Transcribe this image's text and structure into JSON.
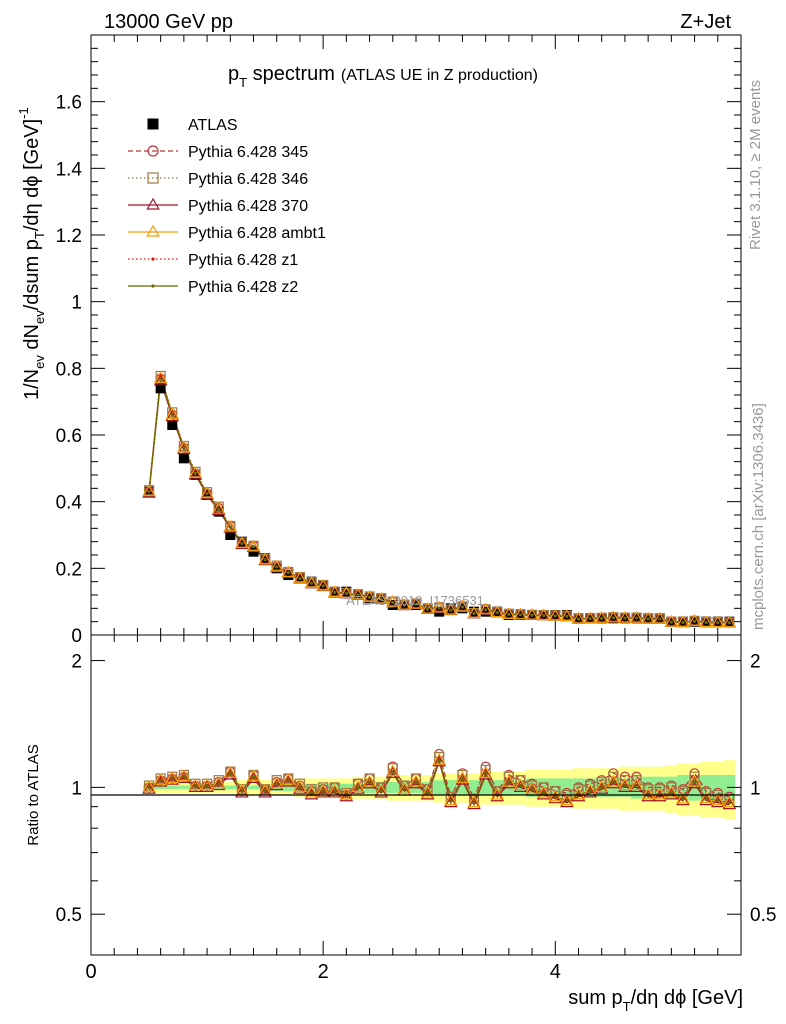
{
  "header": {
    "energy_label": "13000 GeV pp",
    "process_label": "Z+Jet"
  },
  "side_labels": {
    "rivet": "Rivet 3.1.10, ≥ 2M events",
    "mcplots": "mcplots.cern.ch [arXiv:1306.3436]"
  },
  "watermark": "ATLAS_2019_I1736531",
  "chart_data": [
    {
      "type": "line",
      "title": "p_T spectrum (ATLAS UE in Z production)",
      "title_main": "p",
      "title_sub": "T",
      "title_rest": " spectrum",
      "title_paren": "(ATLAS UE in Z production)",
      "ylabel": "1/N_ev dN_ev/dsum p_T/dη dφ [GeV]^-1",
      "xlabel": "sum p_T/dη dφ [GeV]",
      "xlim": [
        0,
        5.6
      ],
      "ylim": [
        0,
        1.8
      ],
      "xticks": [
        "0",
        "2",
        "4"
      ],
      "yticks": [
        "0",
        "0.2",
        "0.4",
        "0.6",
        "0.8",
        "1",
        "1.2",
        "1.4",
        "1.6"
      ],
      "legend_position": "top-left",
      "grid": false,
      "x": [
        0.5,
        0.6,
        0.7,
        0.8,
        0.9,
        1.0,
        1.1,
        1.2,
        1.3,
        1.4,
        1.5,
        1.6,
        1.7,
        1.8,
        1.9,
        2.0,
        2.1,
        2.2,
        2.3,
        2.4,
        2.5,
        2.6,
        2.7,
        2.8,
        2.9,
        3.0,
        3.1,
        3.2,
        3.3,
        3.4,
        3.5,
        3.6,
        3.7,
        3.8,
        3.9,
        4.0,
        4.1,
        4.2,
        4.3,
        4.4,
        4.5,
        4.6,
        4.7,
        4.8,
        4.9,
        5.0,
        5.1,
        5.2,
        5.3,
        5.4,
        5.5
      ],
      "data": [
        0.43,
        0.74,
        0.63,
        0.53,
        0.48,
        0.42,
        0.37,
        0.3,
        0.28,
        0.25,
        0.23,
        0.2,
        0.18,
        0.17,
        0.16,
        0.15,
        0.13,
        0.13,
        0.12,
        0.11,
        0.11,
        0.09,
        0.09,
        0.09,
        0.08,
        0.07,
        0.08,
        0.08,
        0.07,
        0.07,
        0.07,
        0.06,
        0.06,
        0.06,
        0.06,
        0.06,
        0.06,
        0.05,
        0.05,
        0.05,
        0.05,
        0.05,
        0.05,
        0.05,
        0.05,
        0.04,
        0.04,
        0.04,
        0.04,
        0.04,
        0.04
      ],
      "series": [
        {
          "name": "ATLAS",
          "color": "#000000",
          "marker": "square-filled",
          "style": "none"
        },
        {
          "name": "Pythia 6.428 345",
          "color": "#b8363c",
          "marker": "circle-open",
          "style": "dashed"
        },
        {
          "name": "Pythia 6.428 346",
          "color": "#a07840",
          "marker": "square-open",
          "style": "dotted"
        },
        {
          "name": "Pythia 6.428 370",
          "color": "#a0152a",
          "marker": "triangle-open",
          "style": "solid"
        },
        {
          "name": "Pythia 6.428 ambt1",
          "color": "#f5a000",
          "marker": "triangle-open",
          "style": "solid"
        },
        {
          "name": "Pythia 6.428 z1",
          "color": "#e01010",
          "marker": "dot",
          "style": "dotted"
        },
        {
          "name": "Pythia 6.428 z2",
          "color": "#6b6b00",
          "marker": "dot",
          "style": "solid"
        }
      ],
      "mc_ratios": {
        "Pythia 6.428 345": [
          1.0,
          1.04,
          1.05,
          1.06,
          1.01,
          1.01,
          1.03,
          1.09,
          0.98,
          1.07,
          0.99,
          1.03,
          1.05,
          1.01,
          0.98,
          0.99,
          1.0,
          0.96,
          1.02,
          1.05,
          1.0,
          1.12,
          1.01,
          1.05,
          0.99,
          1.2,
          0.95,
          1.08,
          0.94,
          1.12,
          0.98,
          1.07,
          1.04,
          1.02,
          1.0,
          0.98,
          0.97,
          1.0,
          1.02,
          1.04,
          1.08,
          1.06,
          1.06,
          1.0,
          1.0,
          1.01,
          0.99,
          1.08,
          0.98,
          0.97,
          0.95
        ],
        "Pythia 6.428 346": [
          1.01,
          1.05,
          1.06,
          1.07,
          1.02,
          1.02,
          1.04,
          1.09,
          0.99,
          1.07,
          0.99,
          1.04,
          1.05,
          1.02,
          0.99,
          1.0,
          1.0,
          0.97,
          1.02,
          1.05,
          1.0,
          1.11,
          1.01,
          1.05,
          0.99,
          1.18,
          0.95,
          1.07,
          0.94,
          1.1,
          0.98,
          1.06,
          1.04,
          1.01,
          1.0,
          0.98,
          0.96,
          0.99,
          1.01,
          1.03,
          1.06,
          1.04,
          1.04,
          0.99,
          0.99,
          1.0,
          0.98,
          1.06,
          0.97,
          0.96,
          0.94
        ],
        "Pythia 6.428 370": [
          0.99,
          1.03,
          1.04,
          1.05,
          1.0,
          1.0,
          1.01,
          1.07,
          0.97,
          1.05,
          0.97,
          1.01,
          1.03,
          0.99,
          0.96,
          0.97,
          0.97,
          0.95,
          0.99,
          1.02,
          0.97,
          1.08,
          0.98,
          1.02,
          0.96,
          1.15,
          0.92,
          1.04,
          0.91,
          1.07,
          0.95,
          1.02,
          1.0,
          0.98,
          0.96,
          0.94,
          0.92,
          0.95,
          0.97,
          0.99,
          1.02,
          1.0,
          1.0,
          0.95,
          0.95,
          0.96,
          0.93,
          1.02,
          0.93,
          0.92,
          0.91
        ],
        "Pythia 6.428 ambt1": [
          1.0,
          1.04,
          1.05,
          1.06,
          1.01,
          1.01,
          1.02,
          1.08,
          0.98,
          1.06,
          0.98,
          1.02,
          1.04,
          1.0,
          0.97,
          0.98,
          0.98,
          0.96,
          1.0,
          1.03,
          0.98,
          1.09,
          0.99,
          1.03,
          0.97,
          1.16,
          0.93,
          1.05,
          0.92,
          1.08,
          0.96,
          1.03,
          1.01,
          0.99,
          0.97,
          0.95,
          0.93,
          0.96,
          0.98,
          1.0,
          1.03,
          1.01,
          1.01,
          0.96,
          0.96,
          0.97,
          0.94,
          1.03,
          0.94,
          0.93,
          0.92
        ],
        "Pythia 6.428 z1": [
          1.0,
          1.05,
          1.05,
          1.06,
          1.01,
          1.01,
          1.02,
          1.08,
          0.98,
          1.06,
          0.98,
          1.02,
          1.04,
          1.0,
          0.97,
          0.98,
          0.98,
          0.96,
          1.0,
          1.03,
          0.98,
          1.09,
          0.99,
          1.03,
          0.97,
          1.16,
          0.93,
          1.05,
          0.92,
          1.08,
          0.96,
          1.03,
          1.01,
          0.99,
          0.97,
          0.95,
          0.93,
          0.96,
          0.98,
          1.0,
          1.03,
          1.01,
          1.01,
          0.96,
          0.96,
          0.97,
          0.94,
          1.03,
          0.94,
          0.93,
          0.92
        ],
        "Pythia 6.428 z2": [
          1.0,
          1.04,
          1.05,
          1.06,
          1.01,
          1.01,
          1.02,
          1.08,
          0.98,
          1.06,
          0.98,
          1.02,
          1.04,
          1.0,
          0.97,
          0.98,
          0.98,
          0.96,
          1.0,
          1.03,
          0.98,
          1.09,
          0.99,
          1.03,
          0.97,
          1.16,
          0.93,
          1.05,
          0.92,
          1.08,
          0.96,
          1.03,
          1.01,
          0.99,
          0.97,
          0.95,
          0.93,
          0.96,
          0.98,
          1.0,
          1.03,
          1.01,
          1.01,
          0.96,
          0.96,
          0.97,
          0.94,
          1.03,
          0.94,
          0.93,
          0.92
        ]
      }
    },
    {
      "type": "line",
      "ylabel": "Ratio to ATLAS",
      "xlabel": "sum p_T/dη dφ [GeV]",
      "xlim": [
        0,
        5.6
      ],
      "ylim": [
        0.4,
        2.3
      ],
      "yscale": "log",
      "yticks": [
        "0.5",
        "1",
        "2"
      ],
      "reference_line": 1,
      "band_inner": [
        0.01,
        0.01,
        0.01,
        0.01,
        0.01,
        0.01,
        0.01,
        0.01,
        0.01,
        0.01,
        0.01,
        0.02,
        0.02,
        0.02,
        0.02,
        0.02,
        0.02,
        0.02,
        0.02,
        0.03,
        0.03,
        0.03,
        0.03,
        0.03,
        0.03,
        0.04,
        0.04,
        0.04,
        0.04,
        0.04,
        0.04,
        0.04,
        0.04,
        0.05,
        0.05,
        0.05,
        0.05,
        0.05,
        0.05,
        0.05,
        0.05,
        0.05,
        0.06,
        0.06,
        0.06,
        0.06,
        0.07,
        0.07,
        0.07,
        0.07,
        0.07
      ],
      "band_outer": [
        0.03,
        0.03,
        0.03,
        0.03,
        0.03,
        0.03,
        0.03,
        0.03,
        0.04,
        0.04,
        0.04,
        0.04,
        0.04,
        0.05,
        0.05,
        0.05,
        0.05,
        0.05,
        0.06,
        0.06,
        0.06,
        0.07,
        0.07,
        0.07,
        0.07,
        0.08,
        0.08,
        0.08,
        0.08,
        0.09,
        0.09,
        0.09,
        0.09,
        0.1,
        0.1,
        0.1,
        0.1,
        0.11,
        0.11,
        0.11,
        0.11,
        0.12,
        0.12,
        0.12,
        0.12,
        0.13,
        0.14,
        0.14,
        0.15,
        0.15,
        0.16
      ],
      "band_colors": {
        "inner": "#90ee90",
        "outer": "#ffff8c"
      }
    }
  ]
}
